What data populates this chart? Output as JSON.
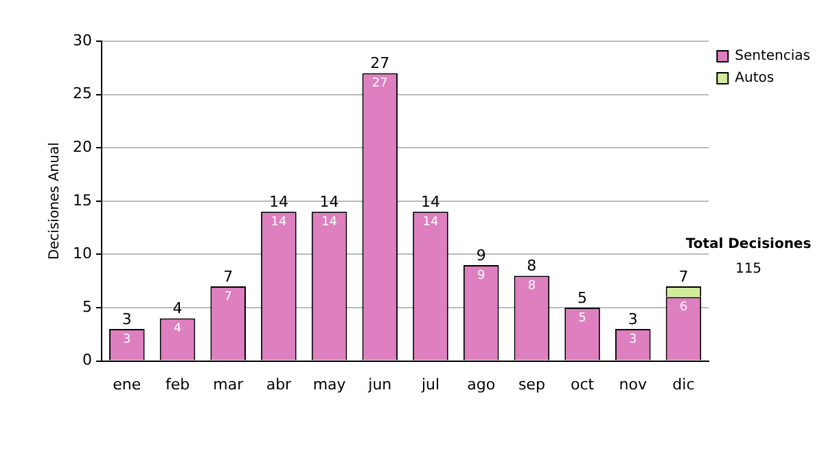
{
  "chart_data": {
    "type": "bar",
    "ylabel": "Decisiones Anual",
    "categories": [
      "ene",
      "feb",
      "mar",
      "abr",
      "may",
      "jun",
      "jul",
      "ago",
      "sep",
      "oct",
      "nov",
      "dic"
    ],
    "series": [
      {
        "name": "Sentencias",
        "color": "#de7fbf",
        "values": [
          3,
          4,
          7,
          14,
          14,
          27,
          14,
          9,
          8,
          5,
          3,
          6
        ],
        "value_labels": [
          "3",
          "4",
          "7",
          "14",
          "14",
          "27",
          "14",
          "9",
          "8",
          "5",
          "3",
          "6"
        ]
      },
      {
        "name": "Autos",
        "color": "#d2ec9c",
        "values": [
          null,
          null,
          null,
          null,
          null,
          null,
          null,
          null,
          null,
          null,
          null,
          1
        ]
      }
    ],
    "stacked": true,
    "totals": [
      "3",
      "4",
      "7",
      "14",
      "14",
      "27",
      "14",
      "9",
      "8",
      "5",
      "3",
      "7"
    ],
    "ylim": [
      0,
      30
    ],
    "yticks": [
      0,
      5,
      10,
      15,
      20,
      25,
      30
    ],
    "grid": "y",
    "legend": "right",
    "annotations": [
      "Total Decisiones",
      "115"
    ]
  }
}
